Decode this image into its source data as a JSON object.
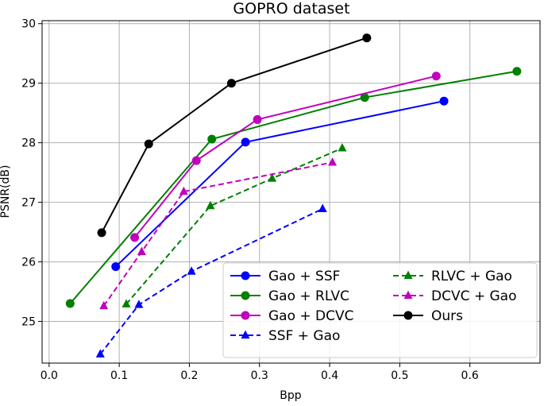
{
  "chart_data": {
    "type": "line",
    "title": "GOPRO dataset",
    "xlabel": "Bpp",
    "ylabel": "PSNR(dB)",
    "xlim": [
      -0.01,
      0.7
    ],
    "ylim": [
      24.3,
      30.05
    ],
    "xticks": [
      0.0,
      0.1,
      0.2,
      0.3,
      0.4,
      0.5,
      0.6
    ],
    "xtick_labels": [
      "0.0",
      "0.1",
      "0.2",
      "0.3",
      "0.4",
      "0.5",
      "0.6"
    ],
    "yticks": [
      25,
      26,
      27,
      28,
      29,
      30
    ],
    "ytick_labels": [
      "25",
      "26",
      "27",
      "28",
      "29",
      "30"
    ],
    "grid": true,
    "legend_position": "bottom-right",
    "legend_columns": 2,
    "series": [
      {
        "name": "Gao + SSF",
        "color": "#0000ff",
        "linestyle": "solid",
        "marker": "circle",
        "x": [
          0.095,
          0.28,
          0.563
        ],
        "y": [
          25.92,
          28.01,
          28.7
        ]
      },
      {
        "name": "Gao + RLVC",
        "color": "#008000",
        "linestyle": "solid",
        "marker": "circle",
        "x": [
          0.03,
          0.232,
          0.45,
          0.667
        ],
        "y": [
          25.3,
          28.06,
          28.76,
          29.2
        ]
      },
      {
        "name": "Gao + DCVC",
        "color": "#bf00bf",
        "linestyle": "solid",
        "marker": "circle",
        "x": [
          0.122,
          0.21,
          0.297,
          0.552
        ],
        "y": [
          26.41,
          27.7,
          28.39,
          29.12
        ]
      },
      {
        "name": "SSF + Gao",
        "color": "#0000ff",
        "linestyle": "dashed",
        "marker": "triangle",
        "x": [
          0.073,
          0.128,
          0.203,
          0.39
        ],
        "y": [
          24.45,
          25.28,
          25.84,
          26.89
        ]
      },
      {
        "name": "RLVC + Gao",
        "color": "#008000",
        "linestyle": "dashed",
        "marker": "triangle",
        "x": [
          0.11,
          0.23,
          0.318,
          0.418
        ],
        "y": [
          25.29,
          26.94,
          27.4,
          27.91
        ]
      },
      {
        "name": "DCVC + Gao",
        "color": "#bf00bf",
        "linestyle": "dashed",
        "marker": "triangle",
        "x": [
          0.078,
          0.132,
          0.192,
          0.404
        ],
        "y": [
          25.26,
          26.17,
          27.18,
          27.67
        ]
      },
      {
        "name": "Ours",
        "color": "#000000",
        "linestyle": "solid",
        "marker": "circle",
        "x": [
          0.075,
          0.142,
          0.26,
          0.453
        ],
        "y": [
          26.49,
          27.98,
          29.0,
          29.76
        ]
      }
    ]
  }
}
